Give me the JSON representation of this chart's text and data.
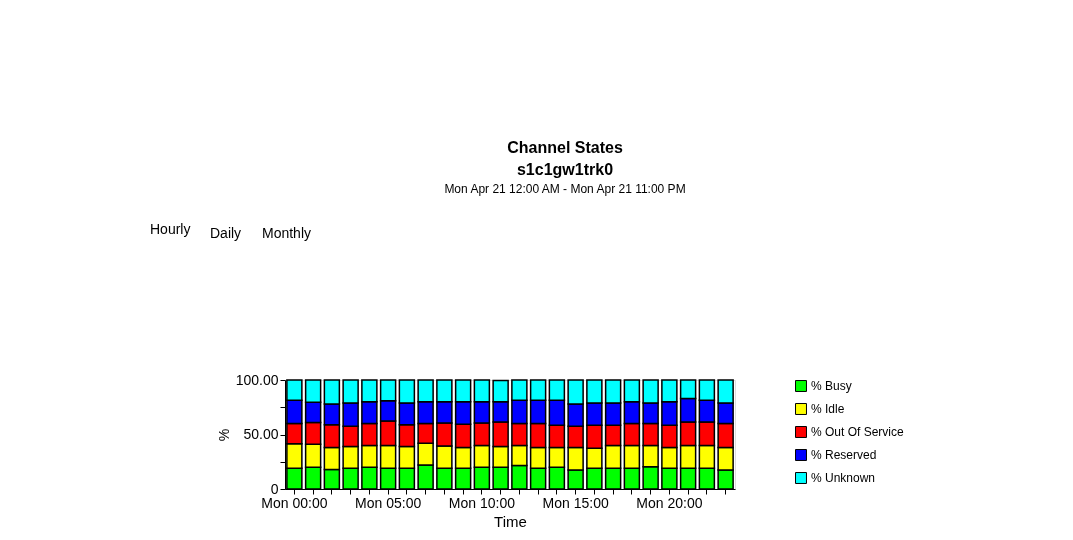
{
  "chart_data": {
    "type": "bar",
    "stacked": true,
    "title": "Channel States",
    "subtitle": "s1c1gw1trk0",
    "annotations": [
      "Hourly",
      "Daily",
      "Monthly",
      "Mon Apr 21 12:00 AM - Mon Apr 21 11:00 PM"
    ],
    "xlabel": "Time",
    "ylabel": "%",
    "categories": [
      "Mon 00:00",
      null,
      null,
      null,
      null,
      "Mon 05:00",
      null,
      null,
      null,
      null,
      "Mon 10:00",
      null,
      null,
      null,
      null,
      "Mon 15:00",
      null,
      null,
      null,
      null,
      "Mon 20:00",
      null,
      null,
      null
    ],
    "series": [
      {
        "name": "% Busy",
        "color": "#00ff00",
        "values": [
          19,
          20,
          18,
          19,
          20,
          19,
          19,
          22,
          19,
          19,
          20,
          20,
          21.5,
          19,
          20,
          17.5,
          19,
          19,
          19,
          20.5,
          19,
          19,
          19,
          17.5
        ]
      },
      {
        "name": "% Idle",
        "color": "#ffff00",
        "values": [
          22.5,
          21,
          20,
          20,
          20,
          21,
          20,
          20,
          20.5,
          19,
          20,
          19,
          18.5,
          19,
          18,
          20.5,
          18.5,
          21,
          21,
          19.5,
          19,
          21,
          21,
          20.5
        ]
      },
      {
        "name": "% Out Of Service",
        "color": "#ff0000",
        "values": [
          18.5,
          20,
          21,
          18.5,
          20,
          22.5,
          20,
          18,
          21,
          21.5,
          20.5,
          22.5,
          20,
          22,
          20.5,
          19.5,
          21,
          18.5,
          20,
          20,
          20.5,
          21.5,
          21.5,
          22
        ]
      },
      {
        "name": "% Reserved",
        "color": "#0000ff",
        "values": [
          21.5,
          18.5,
          19,
          21.5,
          20,
          18.5,
          20,
          20,
          19.5,
          20.5,
          19.5,
          18.5,
          21.5,
          21.5,
          23,
          20.5,
          20.5,
          20.5,
          20,
          19,
          21.5,
          21.5,
          20,
          19
        ]
      },
      {
        "name": "% Unknown",
        "color": "#00ffff",
        "values": [
          18.5,
          20.5,
          22,
          21,
          20,
          19,
          21,
          20,
          20,
          20,
          20,
          19.5,
          18.5,
          18.5,
          18.5,
          22,
          21,
          21,
          20,
          21,
          20,
          17,
          18.5,
          21
        ]
      }
    ],
    "ylim": [
      0,
      100
    ],
    "yticks": [
      0,
      {
        "value": 25,
        "label": null
      },
      {
        "value": 50,
        "label": "50.00"
      },
      {
        "value": 75,
        "label": null
      },
      {
        "value": 100,
        "label": "100.00"
      }
    ],
    "grid": false,
    "legend": "right"
  }
}
